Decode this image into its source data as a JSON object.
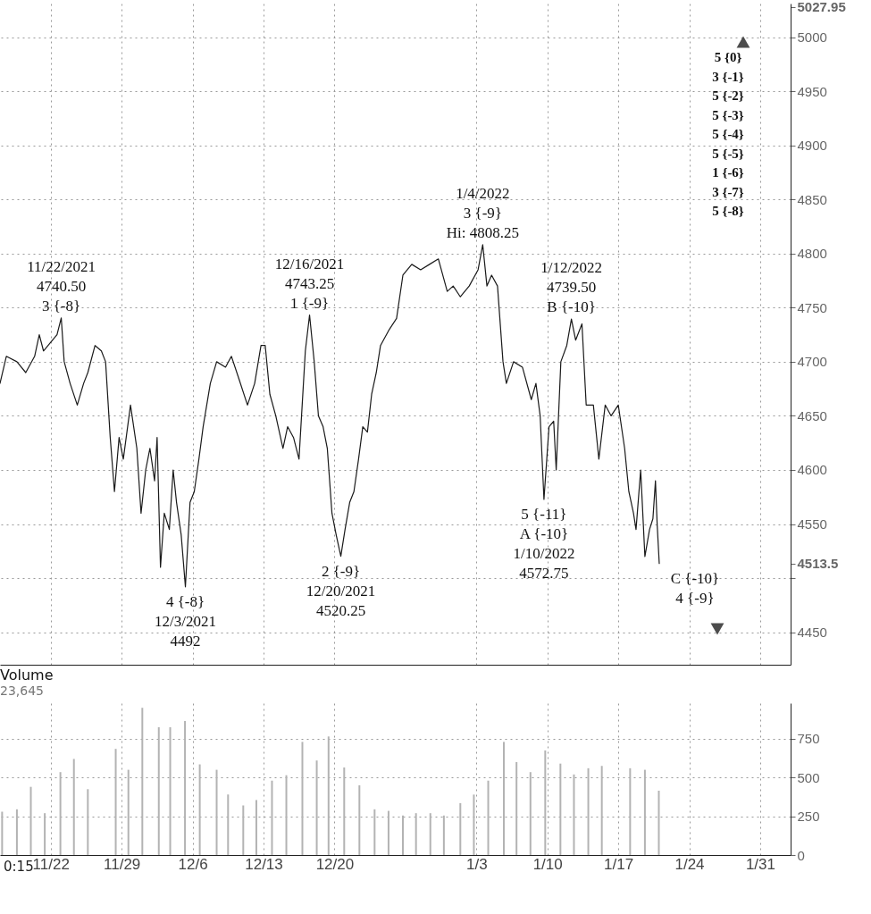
{
  "chart_data": [
    {
      "type": "line",
      "x": [
        "2021-11-17T00:00",
        "2021-11-17T15:00",
        "2021-11-18T16:00",
        "2021-11-19T13:00",
        "2021-11-20T10:00",
        "2021-11-20T21:00",
        "2021-11-21T07:00",
        "2021-11-22T00:00",
        "2021-11-22T15:00",
        "2021-11-23T01:00",
        "2021-11-23T08:00",
        "2021-11-23T22:00",
        "2021-11-24T15:00",
        "2021-11-25T06:00",
        "2021-11-25T16:00",
        "2021-11-26T09:00",
        "2021-11-27T00:00",
        "2021-11-27T10:00",
        "2021-11-27T21:00",
        "2021-11-28T07:00",
        "2021-11-28T18:00",
        "2021-11-29T04:00",
        "2021-11-29T21:00",
        "2021-11-30T12:00",
        "2021-11-30T22:00",
        "2021-12-01T09:00",
        "2021-12-01T19:00",
        "2021-12-02T06:00",
        "2021-12-02T12:00",
        "2021-12-02T20:00",
        "2021-12-03T05:00",
        "2021-12-03T17:00",
        "2021-12-04T02:00",
        "2021-12-04T10:00",
        "2021-12-04T21:00",
        "2021-12-05T07:00",
        "2021-12-05T18:00",
        "2021-12-06T04:00",
        "2021-12-06T15:00",
        "2021-12-07T01:00",
        "2021-12-07T18:00",
        "2021-12-08T09:00",
        "2021-12-09T06:00",
        "2021-12-09T20:00",
        "2021-12-10T13:00",
        "2021-12-11T10:00",
        "2021-12-12T03:00",
        "2021-12-12T18:00",
        "2021-12-13T04:00",
        "2021-12-13T15:00",
        "2021-12-14T05:00",
        "2021-12-14T22:00",
        "2021-12-15T09:00",
        "2021-12-15T23:00",
        "2021-12-16T12:00",
        "2021-12-17T03:00",
        "2021-12-17T13:00",
        "2021-12-18T00:00",
        "2021-12-18T10:00",
        "2021-12-18T21:00",
        "2021-12-19T07:00",
        "2021-12-19T18:00",
        "2021-12-20T04:00",
        "2021-12-20T15:00",
        "2021-12-21T01:00",
        "2021-12-21T12:00",
        "2021-12-21T22:00",
        "2021-12-22T09:00",
        "2021-12-22T19:00",
        "2021-12-23T06:00",
        "2021-12-23T16:00",
        "2021-12-24T03:00",
        "2021-12-24T13:00",
        "2021-12-25T10:00",
        "2021-12-26T03:00",
        "2021-12-26T18:00",
        "2021-12-27T15:00",
        "2021-12-28T12:00",
        "2021-12-29T09:00",
        "2021-12-30T06:00",
        "2021-12-31T03:00",
        "2021-12-31T17:00",
        "2022-01-01T10:00",
        "2022-01-02T07:00",
        "2022-01-03T04:00",
        "2022-01-03T15:00",
        "2022-01-04T01:00",
        "2022-01-04T12:00",
        "2022-01-05T02:00",
        "2022-01-05T15:00",
        "2022-01-05T23:00",
        "2022-01-06T16:00",
        "2022-01-07T13:00",
        "2022-01-08T10:00",
        "2022-01-08T21:00",
        "2022-01-09T07:00",
        "2022-01-09T16:00",
        "2022-01-10T04:00",
        "2022-01-10T15:00",
        "2022-01-10T21:00",
        "2022-01-11T08:00",
        "2022-01-11T22:00",
        "2022-01-12T09:00",
        "2022-01-12T19:00",
        "2022-01-13T10:00",
        "2022-01-13T20:00",
        "2022-01-14T13:00",
        "2022-01-15T02:00",
        "2022-01-15T17:00",
        "2022-01-16T07:00",
        "2022-01-17T00:00",
        "2022-01-17T15:00",
        "2022-01-18T01:00",
        "2022-01-18T12:00",
        "2022-01-18T18:00",
        "2022-01-19T05:00",
        "2022-01-19T15:00",
        "2022-01-20T02:00",
        "2022-01-20T10:00",
        "2022-01-20T16:00",
        "2022-01-20T20:00",
        "2022-01-21T01:00"
      ],
      "series": [
        {
          "color": "#1a1a1a",
          "values": [
            4680,
            4705,
            4700,
            4690,
            4705,
            4725,
            4710,
            4718,
            4725,
            4740.5,
            4700,
            4680,
            4660,
            4680,
            4690,
            4715,
            4710,
            4700,
            4630,
            4580,
            4630,
            4610,
            4660,
            4620,
            4560,
            4600,
            4620,
            4590,
            4630,
            4510,
            4560,
            4545,
            4600,
            4570,
            4540,
            4492,
            4570,
            4580,
            4610,
            4640,
            4680,
            4700,
            4695,
            4705,
            4685,
            4660,
            4680,
            4715,
            4715,
            4670,
            4650,
            4620,
            4640,
            4630,
            4610,
            4710,
            4743.25,
            4700,
            4650,
            4640,
            4620,
            4560,
            4540,
            4520.25,
            4545,
            4570,
            4580,
            4610,
            4640,
            4635,
            4670,
            4690,
            4715,
            4730,
            4740,
            4780,
            4790,
            4785,
            4790,
            4795,
            4765,
            4770,
            4760,
            4770,
            4785,
            4808.25,
            4770,
            4780,
            4770,
            4700,
            4680,
            4700,
            4695,
            4665,
            4680,
            4650,
            4572.75,
            4640,
            4645,
            4600,
            4700,
            4715,
            4739.5,
            4720,
            4735,
            4660,
            4660,
            4610,
            4660,
            4650,
            4660,
            4620,
            4580,
            4560,
            4545,
            4600,
            4520,
            4545,
            4555,
            4590,
            4550,
            4513.5
          ]
        }
      ],
      "xlim": [
        "2021-11-17",
        "2022-02-03"
      ],
      "ylim": [
        4420,
        5031
      ],
      "xticks": [
        "2021-11-22",
        "2021-11-29",
        "2021-12-06",
        "2021-12-13",
        "2021-12-20",
        "2022-01-03",
        "2022-01-10",
        "2022-01-17",
        "2022-01-24",
        "2022-01-31"
      ],
      "yticks": [
        4450,
        {
          "value": 4500,
          "label": null
        },
        4513.5,
        4550,
        4600,
        4650,
        4700,
        4750,
        4800,
        4850,
        4900,
        4950,
        5000,
        5027.95
      ],
      "grid": true,
      "tick_labels": "y",
      "annotations": [
        {
          "text": "11/22/2021\n4740.50\n3 {-8}",
          "x": "2021-11-23T01:00",
          "y": 4740.5
        },
        {
          "text": "12/16/2021\n4743.25\n1 {-9}",
          "x": "2021-12-17T13:00",
          "y": 4743.25
        },
        {
          "text": "1/4/2022\n3 {-9}",
          "x": "2022-01-03T15:00",
          "y": 4808.25
        },
        {
          "text": "Hi: 4808.25",
          "x": "2022-01-03T15:00",
          "y": 4808.25
        },
        {
          "text": "1/12/2022\n4739.50\nB {-10}",
          "x": "2022-01-12T09:00",
          "y": 4739.5
        },
        {
          "text": "5 {-11}\nA {-10}\n1/10/2022\n4572.75",
          "x": "2022-01-09T16:00",
          "y": 4572.75
        },
        {
          "text": "4 {-8}\n12/3/2021\n4492",
          "x": "2021-12-05T07:00",
          "y": 4492
        },
        {
          "text": "2 {-9}\n12/20/2021\n4520.25",
          "x": "2021-12-20T15:00",
          "y": 4520.25
        },
        {
          "text": "C {-10}\n4 {-9}",
          "x": "2022-01-21T01:00",
          "y": 4513.5
        },
        "5 {0}",
        "3 {-1}",
        "5 {-2}",
        "5 {-3}",
        "5 {-4}",
        "5 {-5}",
        "1 {-6}",
        "3 {-7}",
        "5 {-8}"
      ]
    },
    {
      "type": "bar",
      "title": "Volume",
      "subtitle": "23,645",
      "color": "#b3b3b3",
      "x": [
        "2021-11-17T05:00",
        "2021-11-18T16:00",
        "2021-11-20T01:00",
        "2021-11-21T10:00",
        "2021-11-22T23:00",
        "2021-11-24T07:00",
        "2021-11-25T16:00",
        "2021-11-28T10:00",
        "2021-11-29T16:00",
        "2021-12-01T01:00",
        "2021-12-02T16:00",
        "2021-12-03T19:00",
        "2021-12-05T06:00",
        "2021-12-06T17:00",
        "2021-12-08T09:00",
        "2021-12-09T12:00",
        "2021-12-11T00:00",
        "2021-12-12T07:00",
        "2021-12-13T20:00",
        "2021-12-15T06:00",
        "2021-12-16T20:00",
        "2021-12-18T06:00",
        "2021-12-19T10:00",
        "2021-12-20T23:00",
        "2021-12-22T11:00",
        "2021-12-23T23:00",
        "2021-12-25T08:00",
        "2021-12-26T18:00",
        "2021-12-28T01:00",
        "2021-12-29T11:00",
        "2021-12-30T19:00",
        "2022-01-01T10:00",
        "2022-01-02T18:00",
        "2022-01-04T04:00",
        "2022-01-05T17:00",
        "2022-01-06T23:00",
        "2022-01-08T08:00",
        "2022-01-09T19:00",
        "2022-01-11T07:00",
        "2022-01-12T15:00",
        "2022-01-14T01:00",
        "2022-01-15T09:00",
        "2022-01-18T04:00",
        "2022-01-19T15:00",
        "2022-01-21T00:00"
      ],
      "values": [
        280,
        295,
        440,
        270,
        535,
        620,
        425,
        685,
        550,
        950,
        825,
        825,
        865,
        585,
        550,
        390,
        320,
        355,
        480,
        515,
        730,
        610,
        765,
        565,
        450,
        295,
        285,
        255,
        270,
        270,
        255,
        335,
        390,
        480,
        730,
        600,
        535,
        675,
        590,
        520,
        560,
        575,
        560,
        550,
        415
      ],
      "xlim": [
        "2021-11-17",
        "2022-02-03"
      ],
      "ylim": [
        0,
        980
      ],
      "xticks": [
        {
          "value": "2021-11-22",
          "label": "11/22"
        },
        {
          "value": "2021-11-29",
          "label": "11/29"
        },
        {
          "value": "2021-12-06",
          "label": "12/6"
        },
        {
          "value": "2021-12-13",
          "label": "12/13"
        },
        {
          "value": "2021-12-20",
          "label": "12/20"
        },
        {
          "value": "2022-01-03",
          "label": "1/3"
        },
        {
          "value": "2022-01-10",
          "label": "1/10"
        },
        {
          "value": "2022-01-17",
          "label": "1/17"
        },
        {
          "value": "2022-01-24",
          "label": "1/24"
        },
        {
          "value": "2022-01-31",
          "label": "1/31"
        }
      ],
      "yticks": [
        0,
        250,
        500,
        750
      ],
      "grid": true,
      "annotations": [
        "0:15"
      ]
    }
  ]
}
